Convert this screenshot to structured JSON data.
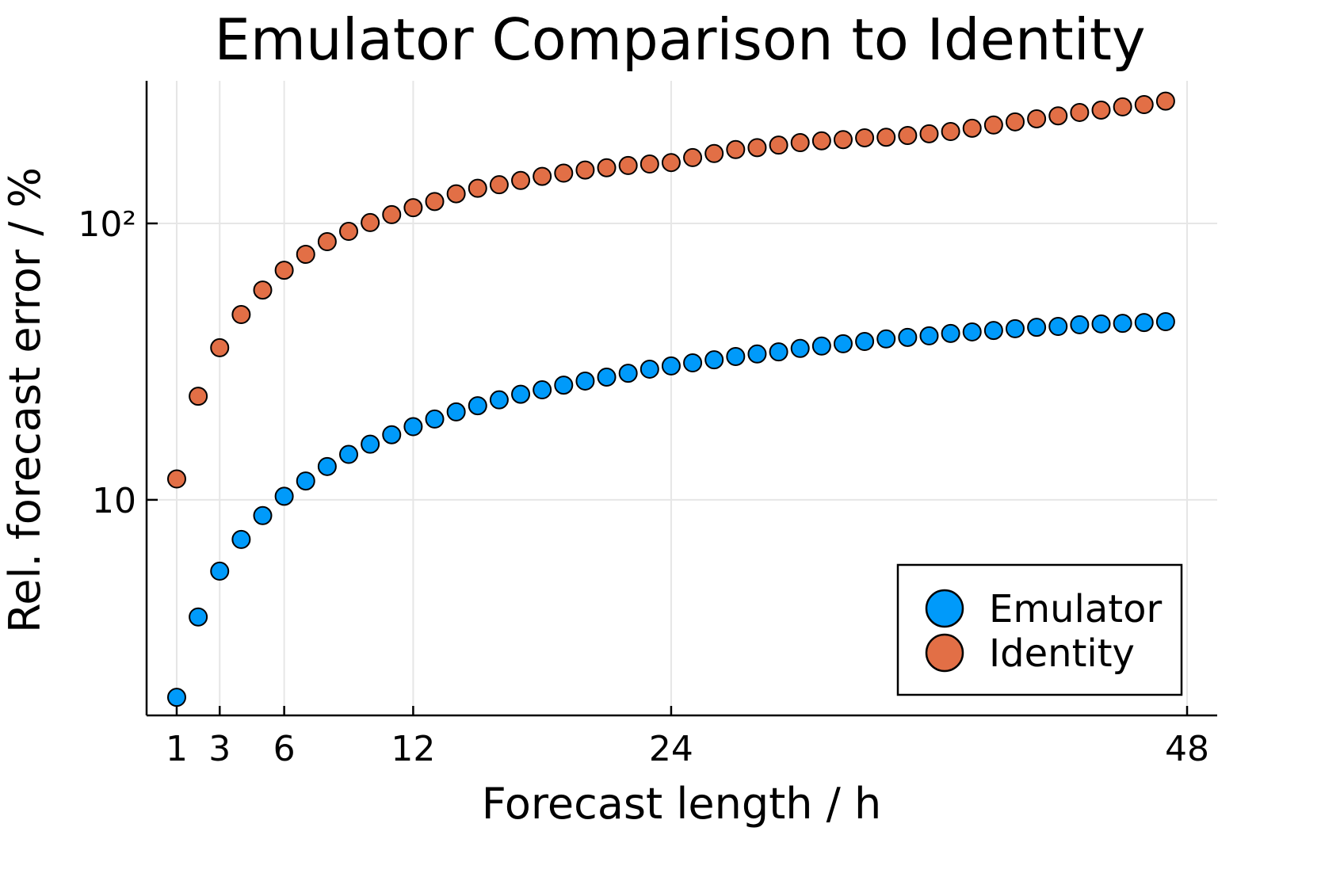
{
  "chart_data": {
    "type": "scatter",
    "title": "Emulator Comparison to Identity",
    "xlabel": "Forecast length / h",
    "ylabel": "Rel. forecast error / %",
    "xlim": [
      -0.4,
      49.4
    ],
    "ylim": [
      1.66,
      328
    ],
    "yscale": "log",
    "grid": true,
    "legend_position": "bottom-right",
    "xticks": [
      1,
      3,
      6,
      12,
      24,
      48
    ],
    "xtick_labels": [
      "1",
      "3",
      "6",
      "12",
      "24",
      "48"
    ],
    "yticks": [
      10,
      100
    ],
    "ytick_labels": [
      "10",
      "10²"
    ],
    "x": [
      1,
      2,
      3,
      4,
      5,
      6,
      7,
      8,
      9,
      10,
      11,
      12,
      13,
      14,
      15,
      16,
      17,
      18,
      19,
      20,
      21,
      22,
      23,
      24,
      25,
      26,
      27,
      28,
      29,
      30,
      31,
      32,
      33,
      34,
      35,
      36,
      37,
      38,
      39,
      40,
      41,
      42,
      43,
      44,
      45,
      46,
      47
    ],
    "series": [
      {
        "name": "Emulator",
        "color": "#009AFA",
        "values": [
          1.93,
          3.77,
          5.52,
          7.19,
          8.77,
          10.3,
          11.7,
          13.2,
          14.6,
          15.9,
          17.2,
          18.4,
          19.6,
          20.8,
          21.9,
          23.0,
          24.1,
          25.0,
          26.0,
          26.9,
          27.8,
          28.7,
          29.7,
          30.5,
          31.3,
          32.1,
          33.0,
          33.7,
          34.3,
          35.3,
          36.0,
          36.7,
          37.4,
          38.2,
          38.7,
          39.2,
          40.0,
          40.5,
          41.0,
          41.6,
          42.1,
          42.4,
          43.0,
          43.3,
          43.5,
          43.8,
          44.1
        ]
      },
      {
        "name": "Identity",
        "color": "#E26F46",
        "values": [
          11.9,
          23.7,
          35.5,
          46.8,
          57.4,
          67.7,
          77.3,
          85.9,
          93.6,
          100.7,
          107.6,
          114,
          120,
          128,
          134,
          138,
          143,
          148,
          152,
          156,
          159,
          162,
          164,
          166,
          173,
          179,
          185,
          188,
          192,
          196,
          199,
          201,
          204,
          205,
          208,
          211,
          215,
          221,
          227,
          233,
          239,
          245,
          252,
          257,
          264,
          269,
          277
        ]
      }
    ]
  }
}
